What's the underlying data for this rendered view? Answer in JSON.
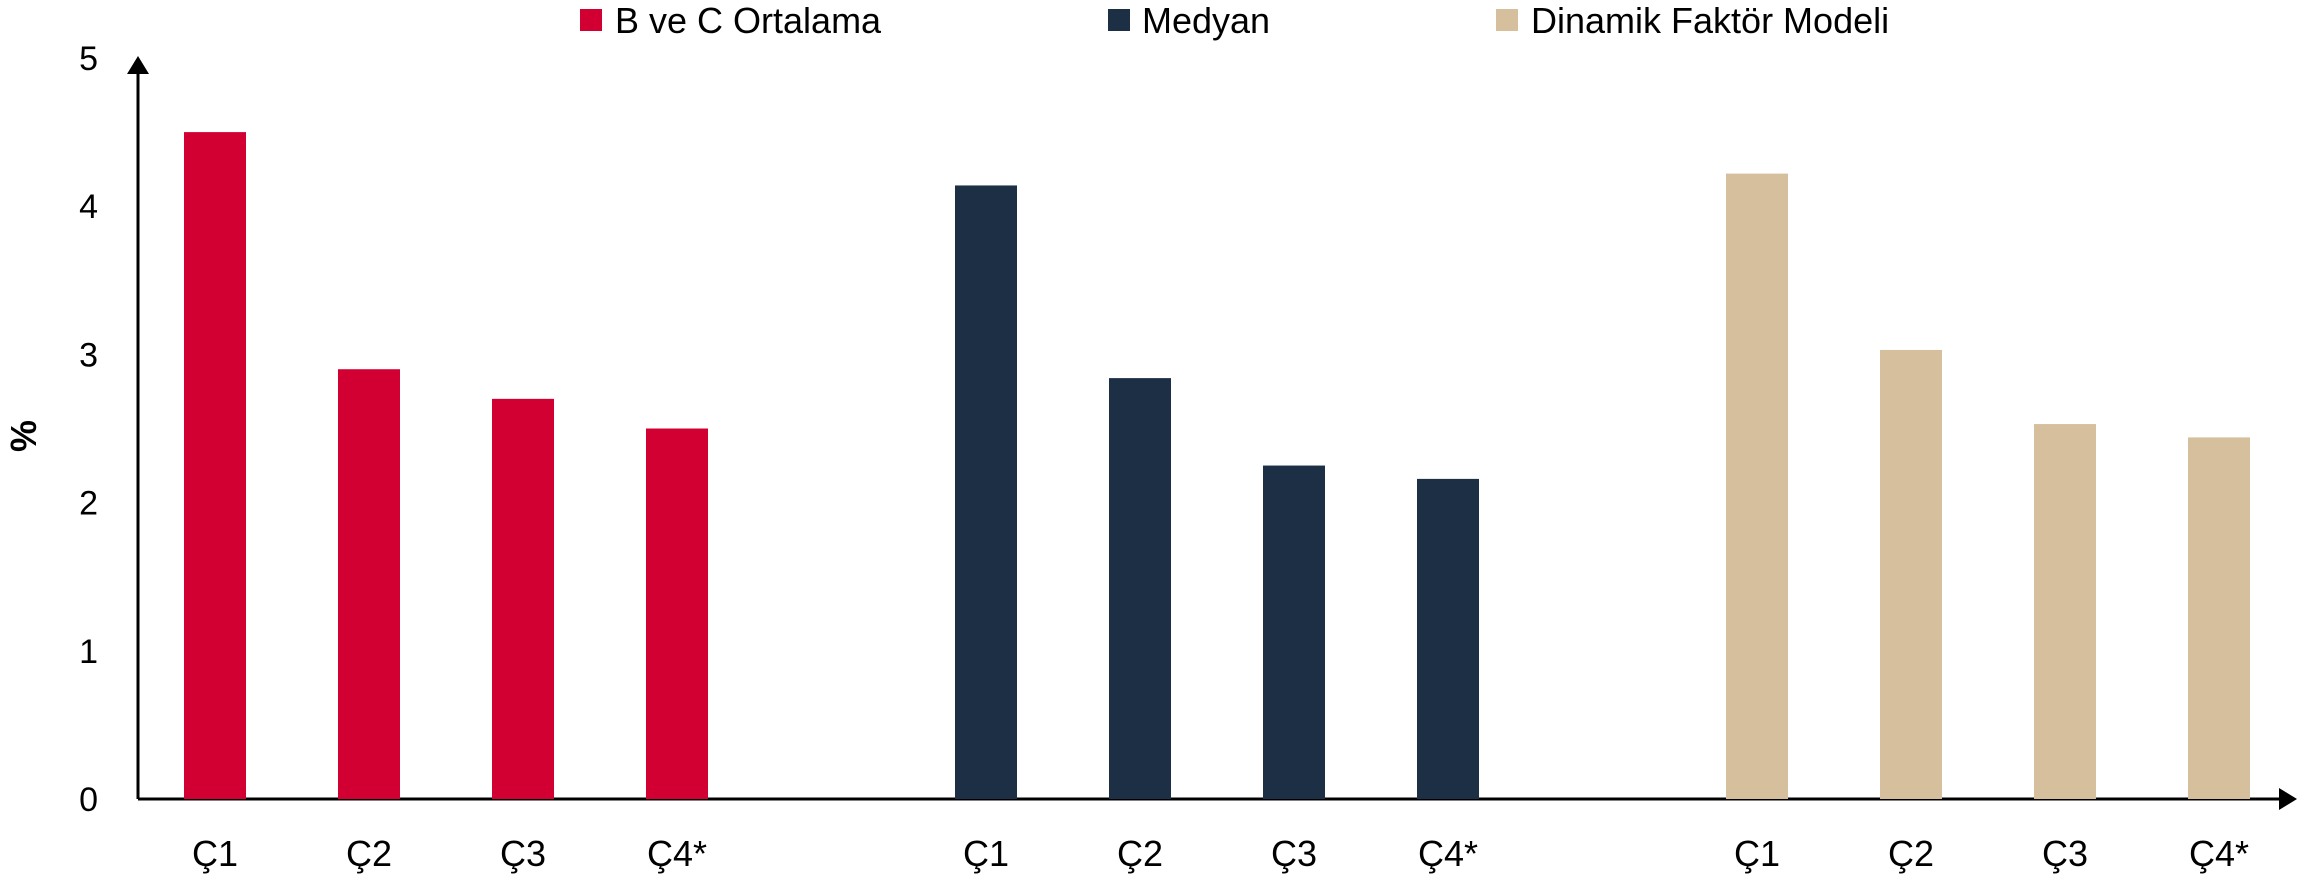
{
  "chart_data": {
    "type": "bar",
    "title": "",
    "xlabel": "",
    "ylabel": "%",
    "ylim": [
      0,
      5
    ],
    "yticks": [
      "0",
      "1",
      "2",
      "3",
      "4",
      "5"
    ],
    "grid": false,
    "legend_position": "top",
    "groups": [
      {
        "name": "B ve C Ortalama",
        "color": "#d20032",
        "categories": [
          "Ç1",
          "Ç2",
          "Ç3",
          "Ç4*"
        ],
        "values": [
          4.5,
          2.9,
          2.7,
          2.5
        ]
      },
      {
        "name": "Medyan",
        "color": "#1c2f45",
        "categories": [
          "Ç1",
          "Ç2",
          "Ç3",
          "Ç4*"
        ],
        "values": [
          4.14,
          2.84,
          2.25,
          2.16
        ]
      },
      {
        "name": "Dinamik Faktör Modeli",
        "color": "#d6bf9c",
        "categories": [
          "Ç1",
          "Ç2",
          "Ç3",
          "Ç4*"
        ],
        "values": [
          4.22,
          3.03,
          2.53,
          2.44
        ]
      }
    ]
  }
}
